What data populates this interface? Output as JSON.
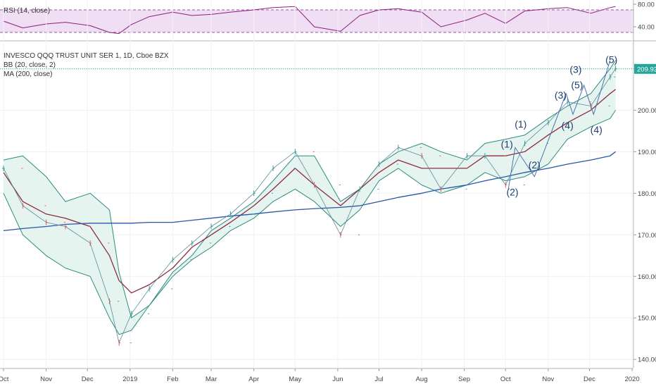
{
  "rsi_panel": {
    "legend": "RSI (14, close)",
    "levels": [
      {
        "value": 70,
        "label": ""
      },
      {
        "value": 30,
        "label": ""
      }
    ],
    "ticks": [
      80,
      40
    ],
    "tick_labels": [
      "80.00",
      "40.00"
    ],
    "ylim": [
      20,
      85
    ],
    "colors": {
      "line": "#8e1f7e",
      "band": "#e8d0f0",
      "level": "#8f5c99"
    }
  },
  "main_panel": {
    "legend_lines": [
      "INVESCO QQQ TRUST UNIT SER 1, 1D, Cboe BZX",
      "BB (20, close, 2)",
      "MA (200, close)"
    ],
    "price_label": "209.93",
    "price_level": 209.93,
    "y_ticks": [
      210,
      200,
      190,
      180,
      170,
      160,
      150,
      140
    ],
    "y_tick_labels": [
      "210.00",
      "200.00",
      "190.00",
      "180.00",
      "170.00",
      "160.00",
      "150.00",
      "140.00"
    ],
    "ylim": [
      138,
      216
    ],
    "colors": {
      "bb_fill": "#e6f4f0",
      "bb_edge": "#2c8b80",
      "bb_mid": "#8d2a43",
      "ma200": "#2857a8",
      "up": "#26a69a",
      "down": "#ef5350",
      "price_line": "#26a69a",
      "wave": "#1e3f70"
    }
  },
  "x_axis": {
    "labels": [
      "Oct",
      "Nov",
      "Dec",
      "2019",
      "Feb",
      "Mar",
      "Apr",
      "May",
      "Jun",
      "Jul",
      "Aug",
      "Sep",
      "Oct",
      "Nov",
      "Dec",
      "2020"
    ]
  },
  "wave_labels": [
    "(1)",
    "(2)",
    "(1)",
    "(2)",
    "(3)",
    "(4)",
    "(5)",
    "(3)",
    "(4)",
    "(5)"
  ],
  "chart_data": {
    "type": "line",
    "title": "INVESCO QQQ TRUST UNIT SER 1, 1D, Cboe BZX",
    "x": [
      "2018-10-01",
      "2018-10-15",
      "2018-11-01",
      "2018-11-15",
      "2018-12-03",
      "2018-12-17",
      "2018-12-24",
      "2019-01-02",
      "2019-01-15",
      "2019-02-01",
      "2019-02-15",
      "2019-03-01",
      "2019-03-15",
      "2019-04-01",
      "2019-04-15",
      "2019-05-01",
      "2019-05-15",
      "2019-06-03",
      "2019-06-17",
      "2019-07-01",
      "2019-07-15",
      "2019-08-01",
      "2019-08-15",
      "2019-09-03",
      "2019-09-16",
      "2019-10-01",
      "2019-10-15",
      "2019-11-01",
      "2019-11-15",
      "2019-12-02",
      "2019-12-16",
      "2019-12-20"
    ],
    "series": [
      {
        "name": "",
        "values": [
          186,
          177,
          173,
          172,
          168,
          154,
          144,
          151,
          157,
          164,
          168,
          172,
          175,
          180,
          186,
          190,
          182,
          170,
          181,
          187,
          191,
          189,
          181,
          189,
          189,
          182,
          192,
          197,
          202,
          201,
          208,
          210
        ]
      },
      {
        "name": "",
        "values": [
          188,
          189,
          184,
          178,
          180,
          176,
          161,
          150,
          153,
          161,
          165,
          171,
          174,
          178,
          183,
          189,
          189,
          178,
          181,
          187,
          190,
          192,
          190,
          188,
          192,
          193,
          194,
          198,
          201,
          204,
          210,
          212
        ]
      },
      {
        "name": "",
        "values": [
          185,
          178,
          175,
          174,
          172,
          165,
          159,
          156,
          158,
          162,
          167,
          170,
          173,
          177,
          181,
          186,
          182,
          177,
          181,
          185,
          188,
          186,
          186,
          186,
          189,
          189,
          190,
          194,
          197,
          200,
          204,
          205
        ]
      },
      {
        "name": "",
        "values": [
          180,
          170,
          165,
          162,
          160,
          150,
          146,
          147,
          153,
          160,
          164,
          167,
          171,
          174,
          178,
          181,
          178,
          172,
          176,
          183,
          186,
          182,
          180,
          182,
          185,
          183,
          184,
          187,
          193,
          196,
          198,
          200
        ]
      },
      {
        "name": "",
        "values": [
          171,
          171.5,
          172,
          172.5,
          172.8,
          172.8,
          172.8,
          172.8,
          173,
          173,
          173.5,
          174,
          174.5,
          175,
          175.5,
          176,
          176.3,
          176.6,
          177,
          178,
          179,
          180,
          181,
          182,
          183,
          184,
          185,
          186,
          187,
          188,
          189,
          190
        ]
      }
    ],
    "rsi": [
      50,
      38,
      45,
      48,
      42,
      30,
      28,
      44,
      58,
      66,
      60,
      62,
      66,
      70,
      74,
      76,
      40,
      32,
      60,
      70,
      72,
      66,
      40,
      52,
      64,
      46,
      68,
      72,
      74,
      64,
      74,
      76
    ],
    "ylim": [
      138,
      216
    ]
  }
}
